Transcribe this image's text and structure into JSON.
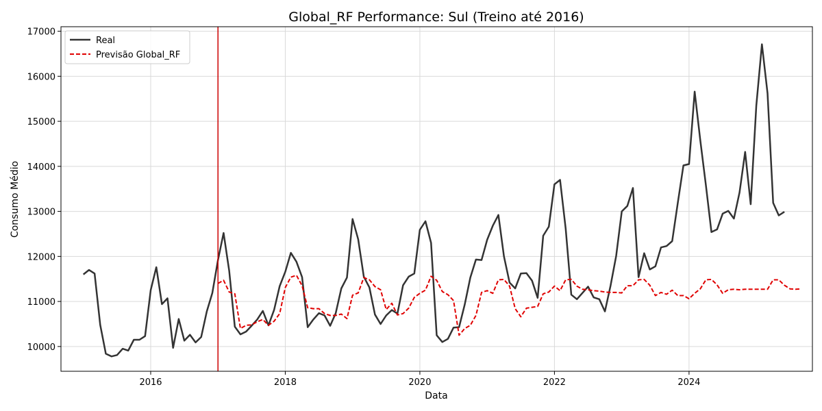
{
  "chart_data": {
    "type": "line",
    "title": "Global_RF Performance: Sul (Treino até 2016)",
    "xlabel": "Data",
    "ylabel": "Consumo Médio",
    "x_ticks": [
      "2016",
      "2018",
      "2020",
      "2022",
      "2024"
    ],
    "y_ticks": [
      "10000",
      "11000",
      "12000",
      "13000",
      "14000",
      "15000",
      "16000",
      "17000"
    ],
    "xlim": [
      "2014-09",
      "2025-11"
    ],
    "ylim": [
      9450,
      17100
    ],
    "grid": true,
    "legend_position": "top-left",
    "split_marker": {
      "x": "2017-01",
      "color": "#cc0000"
    },
    "series": [
      {
        "name": "Real",
        "color": "#333333",
        "style": "solid",
        "start": "2015-01",
        "values": [
          11600,
          11700,
          11620,
          10480,
          9840,
          9780,
          9810,
          9950,
          9910,
          10150,
          10150,
          10230,
          11250,
          11760,
          10940,
          11070,
          9970,
          10610,
          10130,
          10260,
          10090,
          10210,
          10780,
          11190,
          11920,
          12520,
          11680,
          10440,
          10270,
          10330,
          10460,
          10600,
          10790,
          10470,
          10810,
          11340,
          11660,
          12080,
          11880,
          11540,
          10430,
          10600,
          10740,
          10690,
          10460,
          10740,
          11290,
          11530,
          12830,
          12380,
          11550,
          11310,
          10710,
          10500,
          10690,
          10810,
          10730,
          11360,
          11550,
          11620,
          12590,
          12780,
          12300,
          10250,
          10100,
          10170,
          10420,
          10430,
          10930,
          11530,
          11930,
          11920,
          12370,
          12680,
          12920,
          12000,
          11420,
          11290,
          11620,
          11630,
          11460,
          11080,
          12460,
          12660,
          13600,
          13700,
          12620,
          11150,
          11050,
          11190,
          11330,
          11090,
          11050,
          10780,
          11350,
          12010,
          13000,
          13120,
          13520,
          11540,
          12070,
          11710,
          11780,
          12200,
          12230,
          12340,
          13190,
          14020,
          14050,
          15660,
          14580,
          13580,
          12540,
          12600,
          12950,
          13010,
          12840,
          13420,
          14320,
          13160,
          15350,
          16710,
          15620,
          13190,
          12910,
          12990
        ]
      },
      {
        "name": "Previsão Global_RF",
        "color": "#e00000",
        "style": "dashed",
        "start": "2017-01",
        "values": [
          11400,
          11470,
          11210,
          11170,
          10400,
          10470,
          10480,
          10550,
          10600,
          10470,
          10560,
          10730,
          11310,
          11540,
          11580,
          11350,
          10860,
          10840,
          10840,
          10730,
          10690,
          10690,
          10720,
          10620,
          11140,
          11190,
          11530,
          11480,
          11330,
          11260,
          10820,
          10960,
          10700,
          10730,
          10850,
          11090,
          11180,
          11250,
          11560,
          11470,
          11220,
          11150,
          11020,
          10250,
          10400,
          10470,
          10690,
          11200,
          11240,
          11180,
          11480,
          11490,
          11340,
          10840,
          10660,
          10850,
          10870,
          10890,
          11170,
          11210,
          11340,
          11240,
          11480,
          11490,
          11340,
          11270,
          11260,
          11240,
          11230,
          11210,
          11200,
          11200,
          11190,
          11350,
          11350,
          11480,
          11490,
          11360,
          11130,
          11200,
          11160,
          11250,
          11130,
          11130,
          11060,
          11180,
          11280,
          11480,
          11490,
          11370,
          11180,
          11260,
          11270,
          11260,
          11270,
          11270,
          11270,
          11270,
          11270,
          11480,
          11480,
          11360,
          11280,
          11270,
          11280
        ]
      }
    ]
  }
}
